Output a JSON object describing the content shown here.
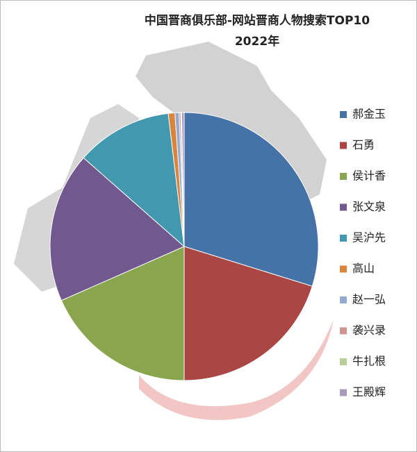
{
  "chart_data": {
    "type": "pie",
    "title": "中国晋商俱乐部-网站晋商人物搜索TOP10",
    "subtitle": "2022年",
    "categories": [
      "郝金玉",
      "石勇",
      "侯计香",
      "张文泉",
      "吴沪先",
      "高山",
      "赵一弘",
      "袭兴录",
      "牛扎根",
      "王殿辉"
    ],
    "values": [
      29.8,
      20.2,
      18.4,
      18.1,
      11.6,
      0.8,
      0.5,
      0.2,
      0.1,
      0.3
    ],
    "colors": [
      "#4572A7",
      "#AA4643",
      "#89A54E",
      "#71588F",
      "#4198AF",
      "#DB843D",
      "#93A9CF",
      "#D19392",
      "#B9CD96",
      "#A99BBD"
    ],
    "legend": "right"
  }
}
